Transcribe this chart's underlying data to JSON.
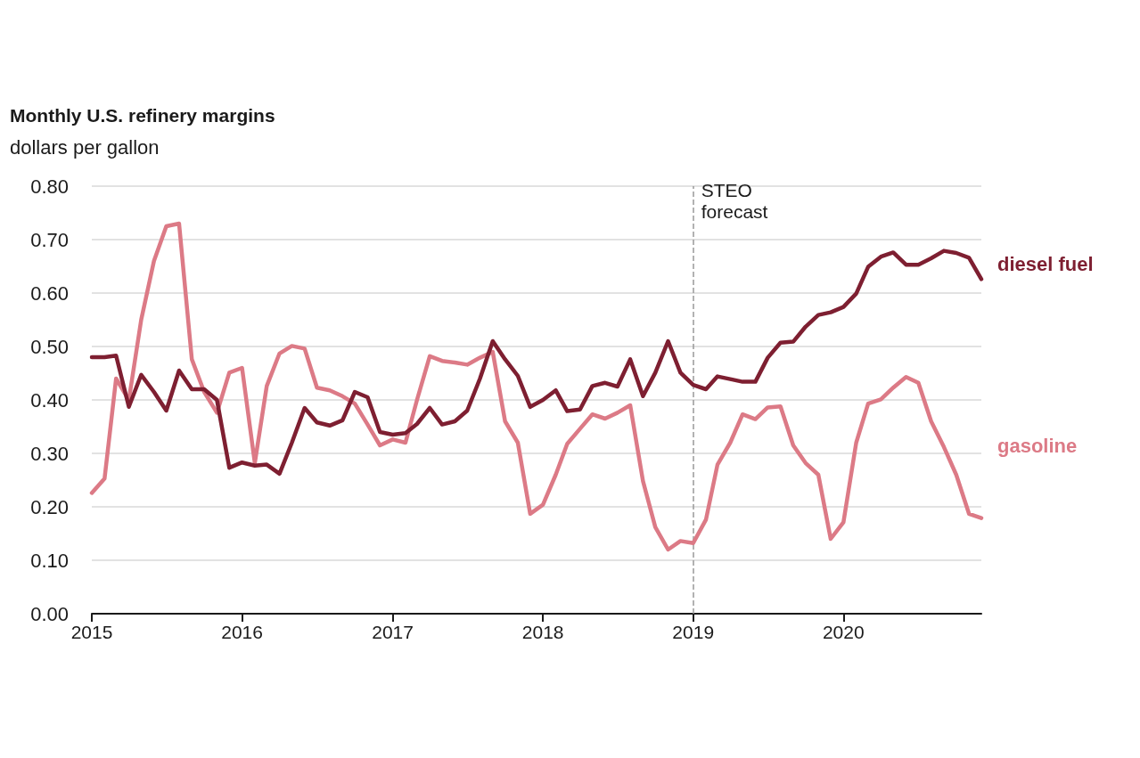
{
  "chart_data": {
    "type": "line",
    "title": "Monthly U.S. refinery margins",
    "ylabel": "dollars per gallon",
    "x": [
      "2015-01",
      "2015-02",
      "2015-03",
      "2015-04",
      "2015-05",
      "2015-06",
      "2015-07",
      "2015-08",
      "2015-09",
      "2015-10",
      "2015-11",
      "2015-12",
      "2016-01",
      "2016-02",
      "2016-03",
      "2016-04",
      "2016-05",
      "2016-06",
      "2016-07",
      "2016-08",
      "2016-09",
      "2016-10",
      "2016-11",
      "2016-12",
      "2017-01",
      "2017-02",
      "2017-03",
      "2017-04",
      "2017-05",
      "2017-06",
      "2017-07",
      "2017-08",
      "2017-09",
      "2017-10",
      "2017-11",
      "2017-12",
      "2018-01",
      "2018-02",
      "2018-03",
      "2018-04",
      "2018-05",
      "2018-06",
      "2018-07",
      "2018-08",
      "2018-09",
      "2018-10",
      "2018-11",
      "2018-12",
      "2019-01",
      "2019-02",
      "2019-03",
      "2019-04",
      "2019-05",
      "2019-06",
      "2019-07",
      "2019-08",
      "2019-09",
      "2019-10",
      "2019-11",
      "2019-12",
      "2020-01",
      "2020-02",
      "2020-03",
      "2020-04",
      "2020-05",
      "2020-06",
      "2020-07",
      "2020-08",
      "2020-09",
      "2020-10",
      "2020-11",
      "2020-12"
    ],
    "series": [
      {
        "name": "diesel fuel",
        "color": "#7e1f31",
        "values": [
          0.48,
          0.48,
          0.483,
          0.387,
          0.447,
          0.415,
          0.38,
          0.455,
          0.42,
          0.42,
          0.4,
          0.273,
          0.283,
          0.277,
          0.279,
          0.262,
          0.32,
          0.385,
          0.358,
          0.352,
          0.362,
          0.415,
          0.405,
          0.34,
          0.335,
          0.338,
          0.355,
          0.385,
          0.354,
          0.36,
          0.38,
          0.44,
          0.51,
          0.476,
          0.445,
          0.387,
          0.4,
          0.418,
          0.379,
          0.382,
          0.426,
          0.432,
          0.425,
          0.476,
          0.407,
          0.451,
          0.51,
          0.451,
          0.428,
          0.42,
          0.444,
          0.439,
          0.434,
          0.434,
          0.479,
          0.507,
          0.509,
          0.537,
          0.559,
          0.564,
          0.574,
          0.599,
          0.649,
          0.668,
          0.676,
          0.653,
          0.653,
          0.665,
          0.679,
          0.675,
          0.666,
          0.626
        ]
      },
      {
        "name": "gasoline",
        "color": "#dc7a86",
        "values": [
          0.226,
          0.253,
          0.44,
          0.4,
          0.55,
          0.66,
          0.725,
          0.73,
          0.476,
          0.415,
          0.376,
          0.451,
          0.46,
          0.282,
          0.426,
          0.487,
          0.501,
          0.496,
          0.423,
          0.418,
          0.407,
          0.393,
          0.354,
          0.315,
          0.326,
          0.32,
          0.4,
          0.482,
          0.473,
          0.47,
          0.466,
          0.479,
          0.49,
          0.36,
          0.32,
          0.187,
          0.204,
          0.26,
          0.318,
          0.346,
          0.373,
          0.365,
          0.376,
          0.39,
          0.248,
          0.162,
          0.12,
          0.136,
          0.132,
          0.176,
          0.279,
          0.32,
          0.373,
          0.364,
          0.386,
          0.388,
          0.315,
          0.282,
          0.26,
          0.14,
          0.171,
          0.32,
          0.393,
          0.401,
          0.423,
          0.443,
          0.432,
          0.36,
          0.312,
          0.26,
          0.187,
          0.179
        ]
      }
    ],
    "xlim": [
      "2015-01",
      "2020-12"
    ],
    "xticks": [
      "2015",
      "2016",
      "2017",
      "2018",
      "2019",
      "2020"
    ],
    "ylim": [
      0,
      0.8
    ],
    "yticks": [
      {
        "value": 0,
        "label": "0.00"
      },
      {
        "value": 0.1,
        "label": "0.10"
      },
      {
        "value": 0.2,
        "label": "0.20"
      },
      {
        "value": 0.3,
        "label": "0.30"
      },
      {
        "value": 0.4,
        "label": "0.40"
      },
      {
        "value": 0.5,
        "label": "0.50"
      },
      {
        "value": 0.6,
        "label": "0.60"
      },
      {
        "value": 0.7,
        "label": "0.70"
      },
      {
        "value": 0.8,
        "label": "0.80"
      }
    ],
    "ref_lines": [
      {
        "axis": "x",
        "value": "2019-01",
        "label": "STEO\nforecast",
        "color": "#999999",
        "line_style": "dashed"
      }
    ],
    "grid": "y",
    "legend": false,
    "marker": "none",
    "line_style": "solid"
  }
}
